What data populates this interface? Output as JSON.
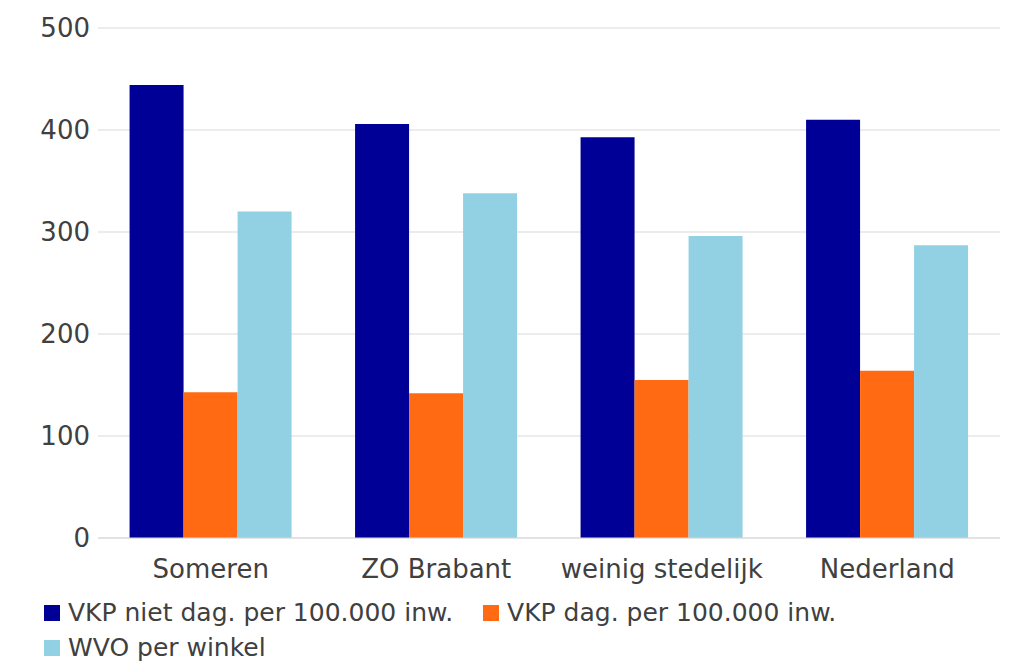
{
  "chart_data": {
    "type": "bar",
    "categories": [
      "Someren",
      "ZO Brabant",
      "weinig stedelijk",
      "Nederland"
    ],
    "series": [
      {
        "name": "VKP niet dag. per 100.000 inw.",
        "color": "#000096",
        "values": [
          444,
          406,
          393,
          410
        ]
      },
      {
        "name": "VKP dag. per 100.000 inw.",
        "color": "#ff6a13",
        "values": [
          143,
          142,
          155,
          164
        ]
      },
      {
        "name": "WVO per winkel",
        "color": "#92d0e3",
        "values": [
          320,
          338,
          296,
          287
        ]
      }
    ],
    "ylim": [
      0,
      500
    ],
    "yticks": [
      0,
      100,
      200,
      300,
      400,
      500
    ],
    "grid": true,
    "legend": "bottom"
  }
}
